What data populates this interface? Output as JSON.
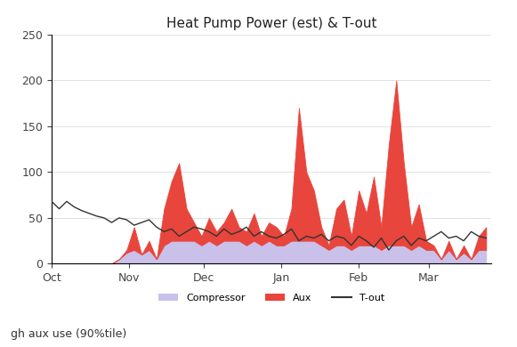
{
  "chart_data": {
    "type": "area",
    "title": "Heat Pump Power (est) & T-out",
    "stacked": true,
    "grid": true,
    "legend": "bottom",
    "annotations": [
      "gh aux use (90%tile)"
    ],
    "x": [
      0,
      3,
      6,
      9,
      12,
      15,
      18,
      21,
      24,
      27,
      30,
      33,
      36,
      39,
      42,
      45,
      48,
      51,
      54,
      57,
      60,
      63,
      66,
      69,
      72,
      75,
      78,
      81,
      84,
      87,
      90,
      93,
      96,
      99,
      102,
      105,
      108,
      111,
      114,
      117,
      120,
      123,
      126,
      129,
      132,
      135,
      138,
      141,
      144,
      147,
      150,
      153,
      156,
      159,
      162,
      165,
      168,
      171,
      174
    ],
    "xlim": [
      0,
      176
    ],
    "xticks": [
      {
        "value": 0,
        "label": "Oct"
      },
      {
        "value": 31,
        "label": "Nov"
      },
      {
        "value": 61,
        "label": "Dec"
      },
      {
        "value": 92,
        "label": "Jan"
      },
      {
        "value": 123,
        "label": "Feb"
      },
      {
        "value": 151,
        "label": "Mar"
      }
    ],
    "ylim": [
      0,
      250
    ],
    "yticks": [
      0,
      50,
      100,
      150,
      200,
      250
    ],
    "series": [
      {
        "name": "Compressor",
        "type": "area",
        "color": "#c9c1ea",
        "values": [
          0,
          0,
          0,
          0,
          0,
          0,
          0,
          0,
          0,
          5,
          12,
          15,
          10,
          15,
          5,
          20,
          25,
          25,
          25,
          25,
          20,
          25,
          20,
          25,
          25,
          25,
          20,
          25,
          20,
          25,
          20,
          20,
          25,
          25,
          25,
          25,
          20,
          15,
          20,
          20,
          15,
          20,
          20,
          20,
          15,
          20,
          20,
          20,
          15,
          20,
          15,
          15,
          5,
          15,
          5,
          12,
          5,
          15,
          15
        ]
      },
      {
        "name": "Aux",
        "type": "area",
        "color": "#e8453c",
        "values": [
          0,
          0,
          0,
          0,
          0,
          0,
          0,
          0,
          0,
          0,
          3,
          25,
          0,
          10,
          0,
          40,
          65,
          85,
          35,
          20,
          10,
          25,
          15,
          20,
          35,
          15,
          15,
          30,
          10,
          20,
          20,
          10,
          35,
          145,
          75,
          55,
          20,
          5,
          40,
          50,
          15,
          60,
          35,
          75,
          25,
          110,
          180,
          90,
          25,
          45,
          10,
          5,
          0,
          10,
          0,
          8,
          0,
          15,
          25
        ]
      },
      {
        "name": "T-out",
        "type": "line",
        "color": "#333333",
        "line_style": "solid",
        "values": [
          68,
          60,
          68,
          62,
          58,
          55,
          52,
          50,
          45,
          50,
          48,
          42,
          45,
          48,
          40,
          35,
          38,
          30,
          35,
          40,
          38,
          35,
          30,
          38,
          32,
          35,
          40,
          30,
          35,
          30,
          28,
          32,
          38,
          25,
          30,
          28,
          32,
          25,
          30,
          28,
          20,
          30,
          25,
          18,
          28,
          15,
          25,
          30,
          20,
          28,
          25,
          30,
          35,
          28,
          30,
          25,
          35,
          30,
          28
        ]
      }
    ]
  }
}
